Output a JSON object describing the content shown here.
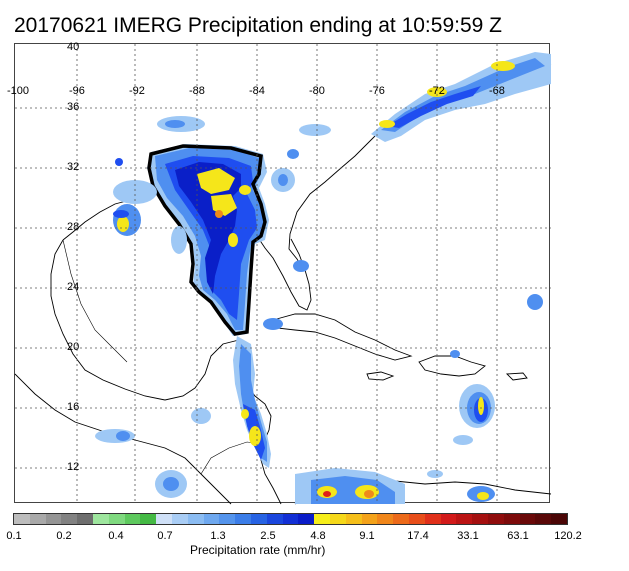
{
  "title": "20170621 IMERG Precipitation ending at 10:59:59 Z",
  "map": {
    "lon_labels": [
      "-100",
      "-96",
      "-92",
      "-88",
      "-84",
      "-80",
      "-76",
      "-72",
      "-68"
    ],
    "lat_labels": [
      "40",
      "36",
      "32",
      "28",
      "24",
      "20",
      "16",
      "12"
    ],
    "grid": "dotted",
    "precip_colors": {
      "light_blue": "#9ec8f5",
      "mid_blue": "#4f8ff0",
      "blue": "#1f4ef0",
      "dark_blue": "#0a1fc8",
      "yellow": "#f5e61a",
      "orange": "#f08a1a",
      "red": "#e0201a"
    }
  },
  "colorbar": {
    "colors": [
      "#bdbdbd",
      "#a9a9a9",
      "#959595",
      "#828282",
      "#6e6e6e",
      "#9ee69e",
      "#7fd97f",
      "#5ec95e",
      "#44b944",
      "#cfe0f7",
      "#a9cdf5",
      "#8bbcf2",
      "#6ea8ef",
      "#5494ec",
      "#3b7de8",
      "#2763e3",
      "#1a46dd",
      "#122fd5",
      "#0a1cc8",
      "#f6ee1a",
      "#f5d81a",
      "#f5bf1a",
      "#f3a21a",
      "#f0861a",
      "#ec6a1a",
      "#e84e1a",
      "#e0301a",
      "#d21a1a",
      "#bb1414",
      "#a51010",
      "#900d0d",
      "#7d0b0b",
      "#6a0909",
      "#5a0808",
      "#4b0606"
    ],
    "ticks": [
      "0.1",
      "0.2",
      "0.4",
      "0.7",
      "1.3",
      "2.5",
      "4.8",
      "9.1",
      "17.4",
      "33.1",
      "63.1",
      "120.2"
    ],
    "label": "Precipitation rate (mm/hr)"
  }
}
